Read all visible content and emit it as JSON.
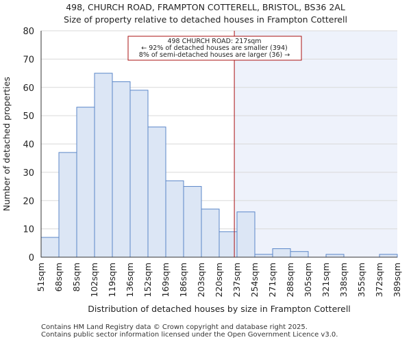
{
  "title_line1": "498, CHURCH ROAD, FRAMPTON COTTERELL, BRISTOL, BS36 2AL",
  "title_line2": "Size of property relative to detached houses in Frampton Cotterell",
  "footer_line1": "Contains HM Land Registry data © Crown copyright and database right 2025.",
  "footer_line2": "Contains public sector information licensed under the Open Government Licence v3.0.",
  "colors": {
    "bar_fill": "#dce6f5",
    "bar_stroke": "#5a86c8",
    "marker": "#aa1111",
    "highlight": "#eef2fb"
  },
  "chart_data": {
    "type": "bar",
    "xlabel": "Distribution of detached houses by size in Frampton Cotterell",
    "ylabel": "Number of detached properties",
    "ylim": [
      0,
      80
    ],
    "yticks": [
      0,
      10,
      20,
      30,
      40,
      50,
      60,
      70,
      80
    ],
    "bin_edges": [
      "51sqm",
      "68sqm",
      "85sqm",
      "102sqm",
      "119sqm",
      "136sqm",
      "152sqm",
      "169sqm",
      "186sqm",
      "203sqm",
      "220sqm",
      "237sqm",
      "254sqm",
      "271sqm",
      "288sqm",
      "305sqm",
      "321sqm",
      "338sqm",
      "355sqm",
      "372sqm",
      "389sqm"
    ],
    "values": [
      7,
      37,
      53,
      65,
      62,
      59,
      46,
      27,
      25,
      17,
      9,
      16,
      1,
      3,
      2,
      0,
      1,
      0,
      0,
      1
    ],
    "marker_value_sqm": 217,
    "marker_position_bins": 10.85,
    "annotation": {
      "line1": "498 CHURCH ROAD: 217sqm",
      "line2": "← 92% of detached houses are smaller (394)",
      "line3": "8% of semi-detached houses are larger (36) →"
    }
  }
}
